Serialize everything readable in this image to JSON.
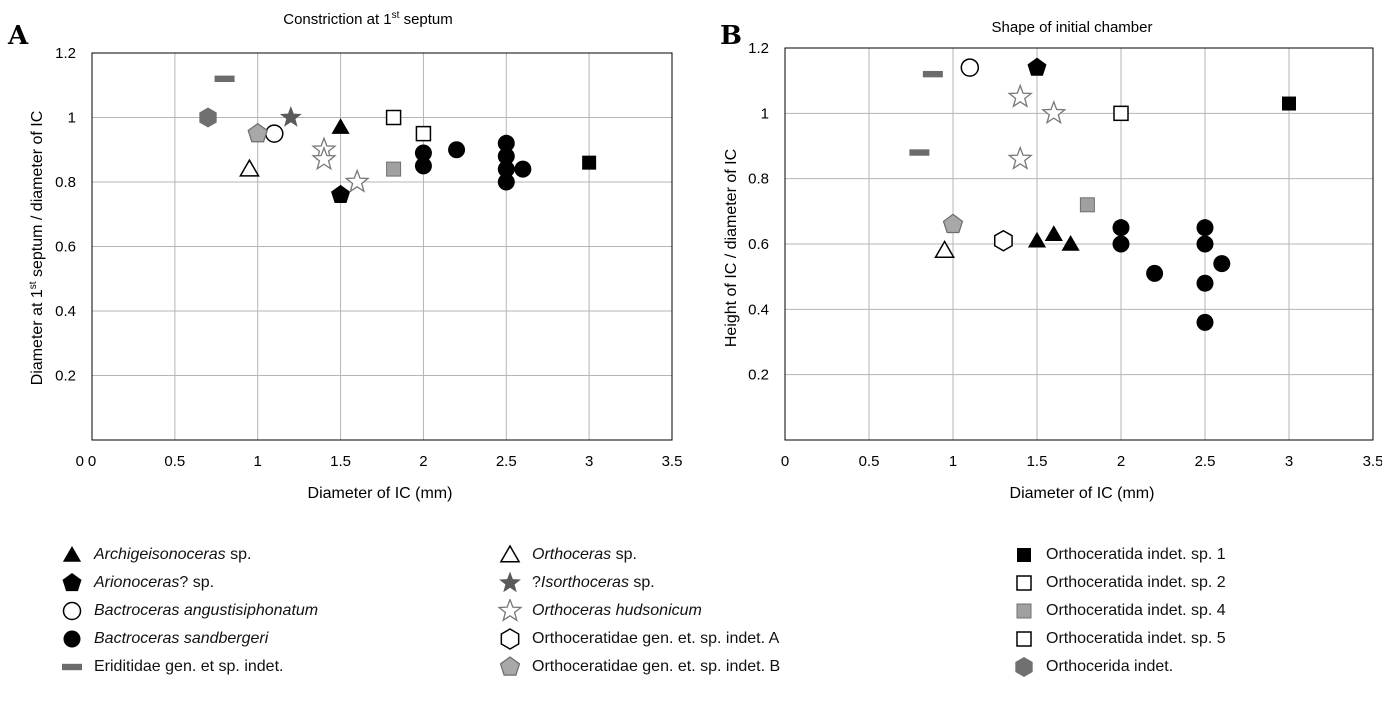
{
  "chart_data": [
    {
      "type": "scatter",
      "panel": "A",
      "title": "Constriction at 1st septum",
      "title_parts": {
        "pre": "Constriction at 1",
        "sup": "st",
        "post": " septum"
      },
      "xlabel": "Diameter of IC (mm)",
      "ylabel_parts": {
        "pre": "Diameter at 1",
        "sup": "st",
        "post": " septum / diameter of IC"
      },
      "xlim": [
        0,
        3.5
      ],
      "ylim": [
        0,
        1.2
      ],
      "xticks": [
        "0",
        "0.5",
        "1",
        "1.5",
        "2",
        "2.5",
        "3",
        "3.5"
      ],
      "yticks": [
        "0",
        "0.2",
        "0.4",
        "0.6",
        "0.8",
        "1",
        "1.2"
      ],
      "grid": true,
      "points": [
        {
          "taxon": "archigeisonoceras",
          "x": 1.5,
          "y": 0.97
        },
        {
          "taxon": "arionoceras",
          "x": 1.5,
          "y": 0.76
        },
        {
          "taxon": "bactroceras_ang",
          "x": 1.1,
          "y": 0.95
        },
        {
          "taxon": "bactroceras_sand",
          "x": 2.0,
          "y": 0.89
        },
        {
          "taxon": "bactroceras_sand",
          "x": 2.0,
          "y": 0.85
        },
        {
          "taxon": "bactroceras_sand",
          "x": 2.2,
          "y": 0.9
        },
        {
          "taxon": "bactroceras_sand",
          "x": 2.5,
          "y": 0.92
        },
        {
          "taxon": "bactroceras_sand",
          "x": 2.5,
          "y": 0.88
        },
        {
          "taxon": "bactroceras_sand",
          "x": 2.5,
          "y": 0.84
        },
        {
          "taxon": "bactroceras_sand",
          "x": 2.5,
          "y": 0.8
        },
        {
          "taxon": "bactroceras_sand",
          "x": 2.6,
          "y": 0.84
        },
        {
          "taxon": "eriditidae",
          "x": 0.8,
          "y": 1.12
        },
        {
          "taxon": "orthoceras",
          "x": 0.95,
          "y": 0.84
        },
        {
          "taxon": "isorthoceras",
          "x": 1.2,
          "y": 1.0
        },
        {
          "taxon": "hudsonicum",
          "x": 1.4,
          "y": 0.9
        },
        {
          "taxon": "hudsonicum",
          "x": 1.4,
          "y": 0.87
        },
        {
          "taxon": "hudsonicum",
          "x": 1.6,
          "y": 0.8
        },
        {
          "taxon": "orthoceratidae_b",
          "x": 1.0,
          "y": 0.95
        },
        {
          "taxon": "indet1",
          "x": 3.0,
          "y": 0.86
        },
        {
          "taxon": "indet2",
          "x": 1.82,
          "y": 1.0
        },
        {
          "taxon": "indet4",
          "x": 1.82,
          "y": 0.84
        },
        {
          "taxon": "indet5",
          "x": 2.0,
          "y": 0.95
        },
        {
          "taxon": "orthocerida",
          "x": 0.7,
          "y": 1.0
        }
      ]
    },
    {
      "type": "scatter",
      "panel": "B",
      "title": "Shape of initial chamber",
      "xlabel": "Diameter of IC (mm)",
      "ylabel": "Height of IC / diameter of IC",
      "xlim": [
        0,
        3.5
      ],
      "ylim": [
        0,
        1.2
      ],
      "xticks": [
        "0",
        "0.5",
        "1",
        "1.5",
        "2",
        "2.5",
        "3",
        "3.5"
      ],
      "yticks": [
        "0.2",
        "0.4",
        "0.6",
        "0.8",
        "1",
        "1.2"
      ],
      "grid": true,
      "points": [
        {
          "taxon": "archigeisonoceras",
          "x": 1.5,
          "y": 0.61
        },
        {
          "taxon": "archigeisonoceras",
          "x": 1.6,
          "y": 0.63
        },
        {
          "taxon": "archigeisonoceras",
          "x": 1.7,
          "y": 0.6
        },
        {
          "taxon": "arionoceras",
          "x": 1.5,
          "y": 1.14
        },
        {
          "taxon": "bactroceras_ang",
          "x": 1.1,
          "y": 1.14
        },
        {
          "taxon": "bactroceras_sand",
          "x": 2.0,
          "y": 0.65
        },
        {
          "taxon": "bactroceras_sand",
          "x": 2.0,
          "y": 0.6
        },
        {
          "taxon": "bactroceras_sand",
          "x": 2.2,
          "y": 0.51
        },
        {
          "taxon": "bactroceras_sand",
          "x": 2.5,
          "y": 0.65
        },
        {
          "taxon": "bactroceras_sand",
          "x": 2.5,
          "y": 0.6
        },
        {
          "taxon": "bactroceras_sand",
          "x": 2.5,
          "y": 0.48
        },
        {
          "taxon": "bactroceras_sand",
          "x": 2.5,
          "y": 0.36
        },
        {
          "taxon": "bactroceras_sand",
          "x": 2.6,
          "y": 0.54
        },
        {
          "taxon": "eriditidae",
          "x": 0.88,
          "y": 1.12
        },
        {
          "taxon": "eriditidae",
          "x": 0.8,
          "y": 0.88
        },
        {
          "taxon": "orthoceras",
          "x": 0.95,
          "y": 0.58
        },
        {
          "taxon": "hudsonicum",
          "x": 1.4,
          "y": 1.05
        },
        {
          "taxon": "hudsonicum",
          "x": 1.6,
          "y": 1.0
        },
        {
          "taxon": "hudsonicum",
          "x": 1.4,
          "y": 0.86
        },
        {
          "taxon": "orthoceratidae_a",
          "x": 1.3,
          "y": 0.61
        },
        {
          "taxon": "orthoceratidae_b",
          "x": 1.0,
          "y": 0.66
        },
        {
          "taxon": "indet1",
          "x": 3.0,
          "y": 1.03
        },
        {
          "taxon": "indet2",
          "x": 2.0,
          "y": 1.0
        },
        {
          "taxon": "indet4",
          "x": 1.8,
          "y": 0.72
        }
      ]
    }
  ],
  "legend": [
    {
      "key": "archigeisonoceras",
      "marker": "triangle-filled",
      "color": "#000000",
      "name": "Archigeisonoceras",
      "suffix": " sp.",
      "italic": true
    },
    {
      "key": "arionoceras",
      "marker": "pentagon-filled",
      "color": "#000000",
      "name": "Arionoceras",
      "suffix": "? sp.",
      "italic": true
    },
    {
      "key": "bactroceras_ang",
      "marker": "circle-open",
      "color": "#000000",
      "name": "Bactroceras angustisiphonatum",
      "suffix": "",
      "italic": true
    },
    {
      "key": "bactroceras_sand",
      "marker": "circle-filled",
      "color": "#000000",
      "name": "Bactroceras sandbergeri",
      "suffix": "",
      "italic": true
    },
    {
      "key": "eriditidae",
      "marker": "dash",
      "color": "#6b6b6b",
      "name": "Eriditidae gen. et sp. indet.",
      "suffix": "",
      "italic": false
    },
    {
      "key": "orthoceras",
      "marker": "triangle-open",
      "color": "#000000",
      "name": "Orthoceras",
      "suffix": " sp.",
      "italic": true
    },
    {
      "key": "isorthoceras",
      "marker": "star-filled",
      "color": "#5a5a5a",
      "prefix": "?",
      "name": "Isorthoceras",
      "suffix": " sp.",
      "italic": true
    },
    {
      "key": "hudsonicum",
      "marker": "star-open",
      "color": "#777777",
      "name": "Orthoceras hudsonicum",
      "suffix": "",
      "italic": true
    },
    {
      "key": "orthoceratidae_a",
      "marker": "hexagon-open",
      "color": "#000000",
      "name": "Orthoceratidae gen. et. sp. indet. A",
      "suffix": "",
      "italic": false
    },
    {
      "key": "orthoceratidae_b",
      "marker": "pentagon-gray",
      "color": "#a8a8a8",
      "name": "Orthoceratidae gen. et. sp. indet. B",
      "suffix": "",
      "italic": false
    },
    {
      "key": "indet1",
      "marker": "square-filled",
      "color": "#000000",
      "name": "Orthoceratida indet. sp. 1",
      "suffix": "",
      "italic": false
    },
    {
      "key": "indet2",
      "marker": "square-open",
      "color": "#000000",
      "name": "Orthoceratida indet. sp. 2",
      "suffix": "",
      "italic": false
    },
    {
      "key": "indet4",
      "marker": "square-gray",
      "color": "#a0a0a0",
      "name": "Orthoceratida indet. sp. 4",
      "suffix": "",
      "italic": false
    },
    {
      "key": "indet5",
      "marker": "square-open",
      "color": "#000000",
      "name": "Orthoceratida indet. sp. 5",
      "suffix": "",
      "italic": false
    },
    {
      "key": "orthocerida",
      "marker": "hexagon-gray",
      "color": "#707070",
      "name": "Orthocerida indet.",
      "suffix": "",
      "italic": false
    }
  ],
  "colors": {
    "grid": "#b5b5b5",
    "axis": "#000000",
    "gray_fill": "#a0a0a0",
    "dark_gray": "#6b6b6b"
  }
}
